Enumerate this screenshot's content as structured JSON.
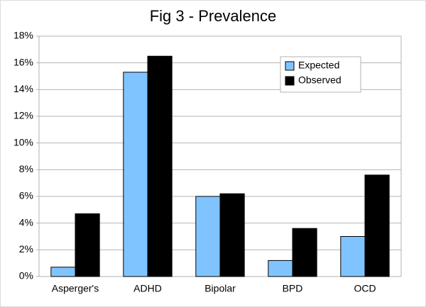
{
  "chart_data": {
    "type": "bar",
    "title": "Fig 3 - Prevalence",
    "categories": [
      "Asperger's",
      "ADHD",
      "Bipolar",
      "BPD",
      "OCD"
    ],
    "series": [
      {
        "name": "Expected",
        "color": "#80c4ff",
        "values": [
          0.7,
          15.3,
          6.0,
          1.2,
          3.0
        ]
      },
      {
        "name": "Observed",
        "color": "#000000",
        "values": [
          4.7,
          16.5,
          6.2,
          3.6,
          7.6
        ]
      }
    ],
    "ylim": [
      0,
      18
    ],
    "yticks": [
      {
        "value": 0,
        "label": "0%"
      },
      {
        "value": 2,
        "label": "2%"
      },
      {
        "value": 4,
        "label": "4%"
      },
      {
        "value": 6,
        "label": "6%"
      },
      {
        "value": 8,
        "label": "8%"
      },
      {
        "value": 10,
        "label": "10%"
      },
      {
        "value": 12,
        "label": "12%"
      },
      {
        "value": 14,
        "label": "14%"
      },
      {
        "value": 16,
        "label": "16%"
      },
      {
        "value": 18,
        "label": "18%"
      }
    ],
    "grid": true,
    "legend": "upper right"
  }
}
